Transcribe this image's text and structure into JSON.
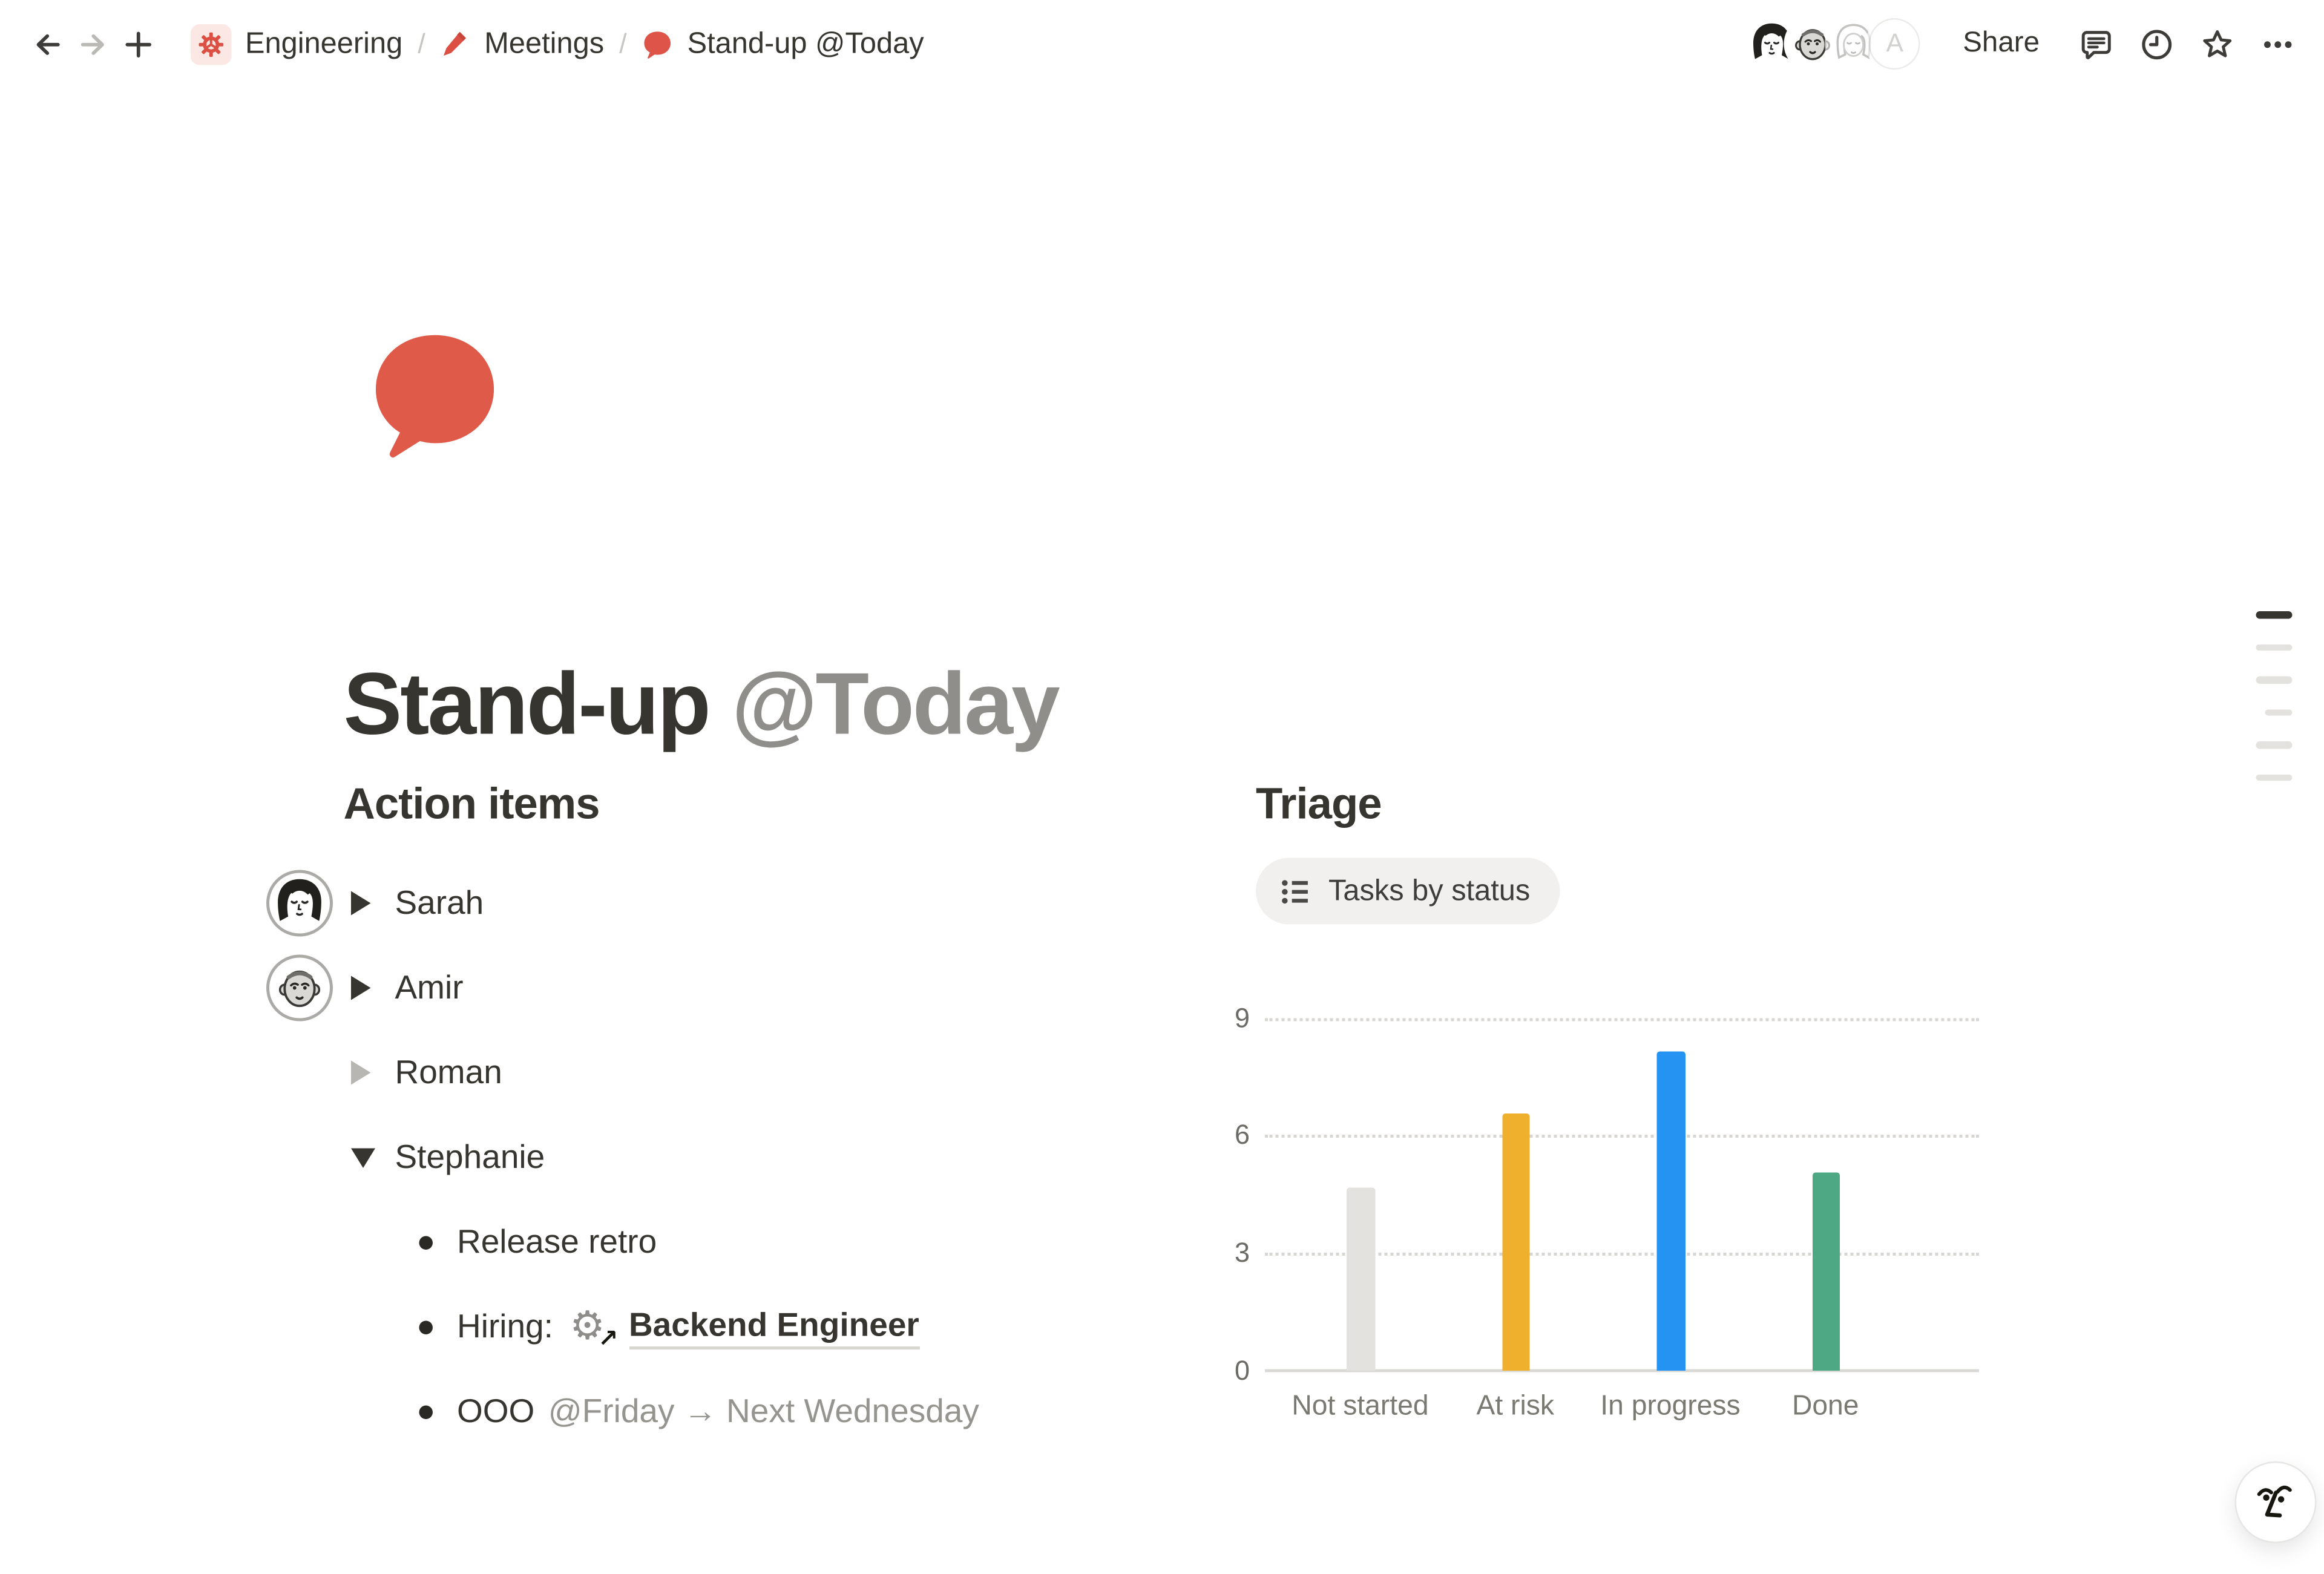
{
  "nav": {
    "breadcrumb": [
      {
        "label": "Engineering"
      },
      {
        "label": "Meetings"
      },
      {
        "label": "Stand-up @Today"
      }
    ],
    "separator": "/",
    "share_label": "Share",
    "avatar_letter": "A"
  },
  "page": {
    "title": "Stand-up ",
    "title_mention": "@Today"
  },
  "action_items": {
    "heading": "Action items",
    "toggles": [
      {
        "name": "Sarah"
      },
      {
        "name": "Amir"
      },
      {
        "name": "Roman"
      },
      {
        "name": "Stephanie"
      }
    ],
    "bullets": [
      {
        "text": "Release retro"
      },
      {
        "prefix": "Hiring:",
        "link": "Backend Engineer"
      },
      {
        "prefix": "OOO",
        "mention": "@Friday → Next Wednesday"
      }
    ]
  },
  "triage": {
    "heading": "Triage",
    "view_button": "Tasks by status"
  },
  "chart_data": {
    "type": "bar",
    "title": "Tasks by status",
    "categories": [
      "Not started",
      "At risk",
      "In progress",
      "Done"
    ],
    "values": [
      4.7,
      6.6,
      8.2,
      5.1
    ],
    "colors": [
      "#E4E2DF",
      "#EFB02E",
      "#2493F1",
      "#4DA883"
    ],
    "yticks": [
      9,
      6,
      3,
      0
    ],
    "ylim": [
      0,
      9
    ],
    "grid": "dotted-horizontal",
    "legend": "none"
  },
  "colors": {
    "accent_red": "#DE5449",
    "text_primary": "#37352F",
    "text_gray": "#95948F"
  }
}
